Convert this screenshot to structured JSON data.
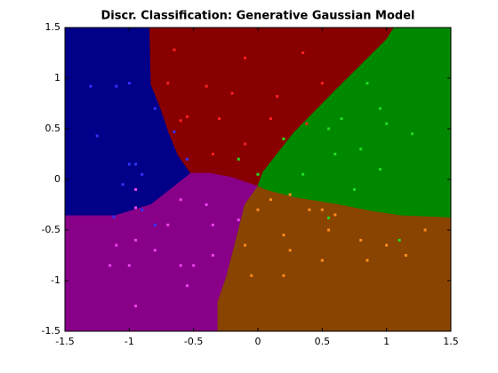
{
  "chart_data": {
    "type": "scatter",
    "title": "Discr. Classification: Generative Gaussian Model",
    "xlim": [
      -1.5,
      1.5
    ],
    "ylim": [
      -1.5,
      1.5
    ],
    "xticks": [
      -1.5,
      -1,
      -0.5,
      0,
      0.5,
      1,
      1.5
    ],
    "yticks": [
      -1.5,
      -1,
      -0.5,
      0,
      0.5,
      1,
      1.5
    ],
    "grid": false,
    "regions": [
      {
        "color": "#000088",
        "x": [
          -1.5,
          -0.84,
          -0.83,
          -0.76,
          -0.69,
          -0.62,
          -0.52,
          -0.83,
          -1.11,
          -1.5
        ],
        "y": [
          1.5,
          1.5,
          0.94,
          0.72,
          0.46,
          0.24,
          0.06,
          -0.25,
          -0.36,
          -0.36
        ]
      },
      {
        "color": "#880000",
        "x": [
          -0.84,
          1.06,
          1.0,
          0.62,
          0.28,
          0.04,
          0,
          -0.21,
          -0.38,
          -0.52,
          -0.62,
          -0.69,
          -0.76,
          -0.83
        ],
        "y": [
          1.5,
          1.5,
          1.38,
          0.9,
          0.46,
          0.07,
          -0.07,
          0.02,
          0.06,
          0.06,
          0.24,
          0.46,
          0.72,
          0.94
        ]
      },
      {
        "color": "#008800",
        "x": [
          1.06,
          1.5,
          1.5,
          1.11,
          0.9,
          0.62,
          0.28,
          0.07,
          0,
          0.04,
          0.28,
          0.62,
          1.0
        ],
        "y": [
          1.5,
          1.5,
          -0.38,
          -0.36,
          -0.32,
          -0.25,
          -0.18,
          -0.11,
          -0.07,
          0.07,
          0.46,
          0.9,
          1.38
        ]
      },
      {
        "color": "#880088",
        "x": [
          -1.5,
          -1.11,
          -0.83,
          -0.52,
          -0.38,
          -0.21,
          0,
          -0.1,
          -0.17,
          -0.24,
          -0.31,
          -0.31,
          -1.5
        ],
        "y": [
          -0.36,
          -0.36,
          -0.25,
          0.06,
          0.06,
          0.02,
          -0.07,
          -0.25,
          -0.6,
          -0.95,
          -1.21,
          -1.5,
          -1.5
        ]
      },
      {
        "color": "#884400",
        "x": [
          0,
          0.07,
          0.28,
          0.62,
          0.9,
          1.11,
          1.5,
          1.5,
          -0.31,
          -0.31,
          -0.24,
          -0.17,
          -0.1
        ],
        "y": [
          -0.07,
          -0.11,
          -0.18,
          -0.25,
          -0.32,
          -0.36,
          -0.38,
          -1.5,
          -1.5,
          -1.21,
          -0.95,
          -0.6,
          -0.25
        ]
      }
    ],
    "series": [
      {
        "color": "#3333ff",
        "x": [
          -1.3,
          -1.1,
          -1.0,
          -1.25,
          -1.0,
          -0.95,
          -0.9,
          -1.05,
          -0.8,
          -0.65,
          -0.55,
          -0.9,
          -1.12,
          -0.8
        ],
        "y": [
          0.92,
          0.92,
          0.95,
          0.43,
          0.15,
          0.15,
          0.05,
          -0.05,
          0.7,
          0.47,
          0.2,
          -0.3,
          -0.37,
          -0.45
        ]
      },
      {
        "color": "#ff2222",
        "x": [
          -0.65,
          -0.1,
          0.35,
          -0.7,
          -0.4,
          -0.2,
          0.15,
          0.5,
          -0.55,
          -0.3,
          0.1,
          -0.1,
          -0.35,
          0.2,
          -0.6,
          0.38
        ],
        "y": [
          1.28,
          1.2,
          1.25,
          0.95,
          0.92,
          0.85,
          0.82,
          0.95,
          0.62,
          0.6,
          0.6,
          0.35,
          0.25,
          0.4,
          0.58,
          0.55
        ]
      },
      {
        "color": "#22dd22",
        "x": [
          0.55,
          0.65,
          0.85,
          0.95,
          1.0,
          1.2,
          0.8,
          0.6,
          0.95,
          0.75,
          0.35,
          0.0,
          -0.15,
          0.2,
          1.1,
          0.55
        ],
        "y": [
          0.5,
          0.6,
          0.95,
          0.7,
          0.55,
          0.45,
          0.3,
          0.25,
          0.1,
          -0.1,
          0.05,
          0.05,
          0.2,
          0.4,
          -0.6,
          -0.38
        ]
      },
      {
        "color": "#ee44ee",
        "x": [
          -0.95,
          -0.95,
          -0.6,
          -0.4,
          -0.7,
          -0.35,
          -0.15,
          -0.95,
          -1.1,
          -1.15,
          -1.0,
          -0.8,
          -0.6,
          -0.5,
          -0.35,
          -0.95,
          -0.55
        ],
        "y": [
          -0.1,
          -0.28,
          -0.2,
          -0.25,
          -0.45,
          -0.45,
          -0.4,
          -0.6,
          -0.65,
          -0.85,
          -0.85,
          -0.7,
          -0.85,
          -0.85,
          -0.75,
          -1.25,
          -1.05
        ]
      },
      {
        "color": "#ff8c1a",
        "x": [
          0.1,
          0.25,
          0.0,
          0.4,
          0.5,
          0.6,
          0.2,
          0.55,
          0.8,
          1.0,
          1.3,
          -0.1,
          0.25,
          0.5,
          0.85,
          -0.05,
          0.2,
          1.15
        ],
        "y": [
          -0.2,
          -0.15,
          -0.3,
          -0.3,
          -0.3,
          -0.35,
          -0.55,
          -0.5,
          -0.6,
          -0.65,
          -0.5,
          -0.65,
          -0.7,
          -0.8,
          -0.8,
          -0.95,
          -0.95,
          -0.75
        ]
      }
    ]
  }
}
